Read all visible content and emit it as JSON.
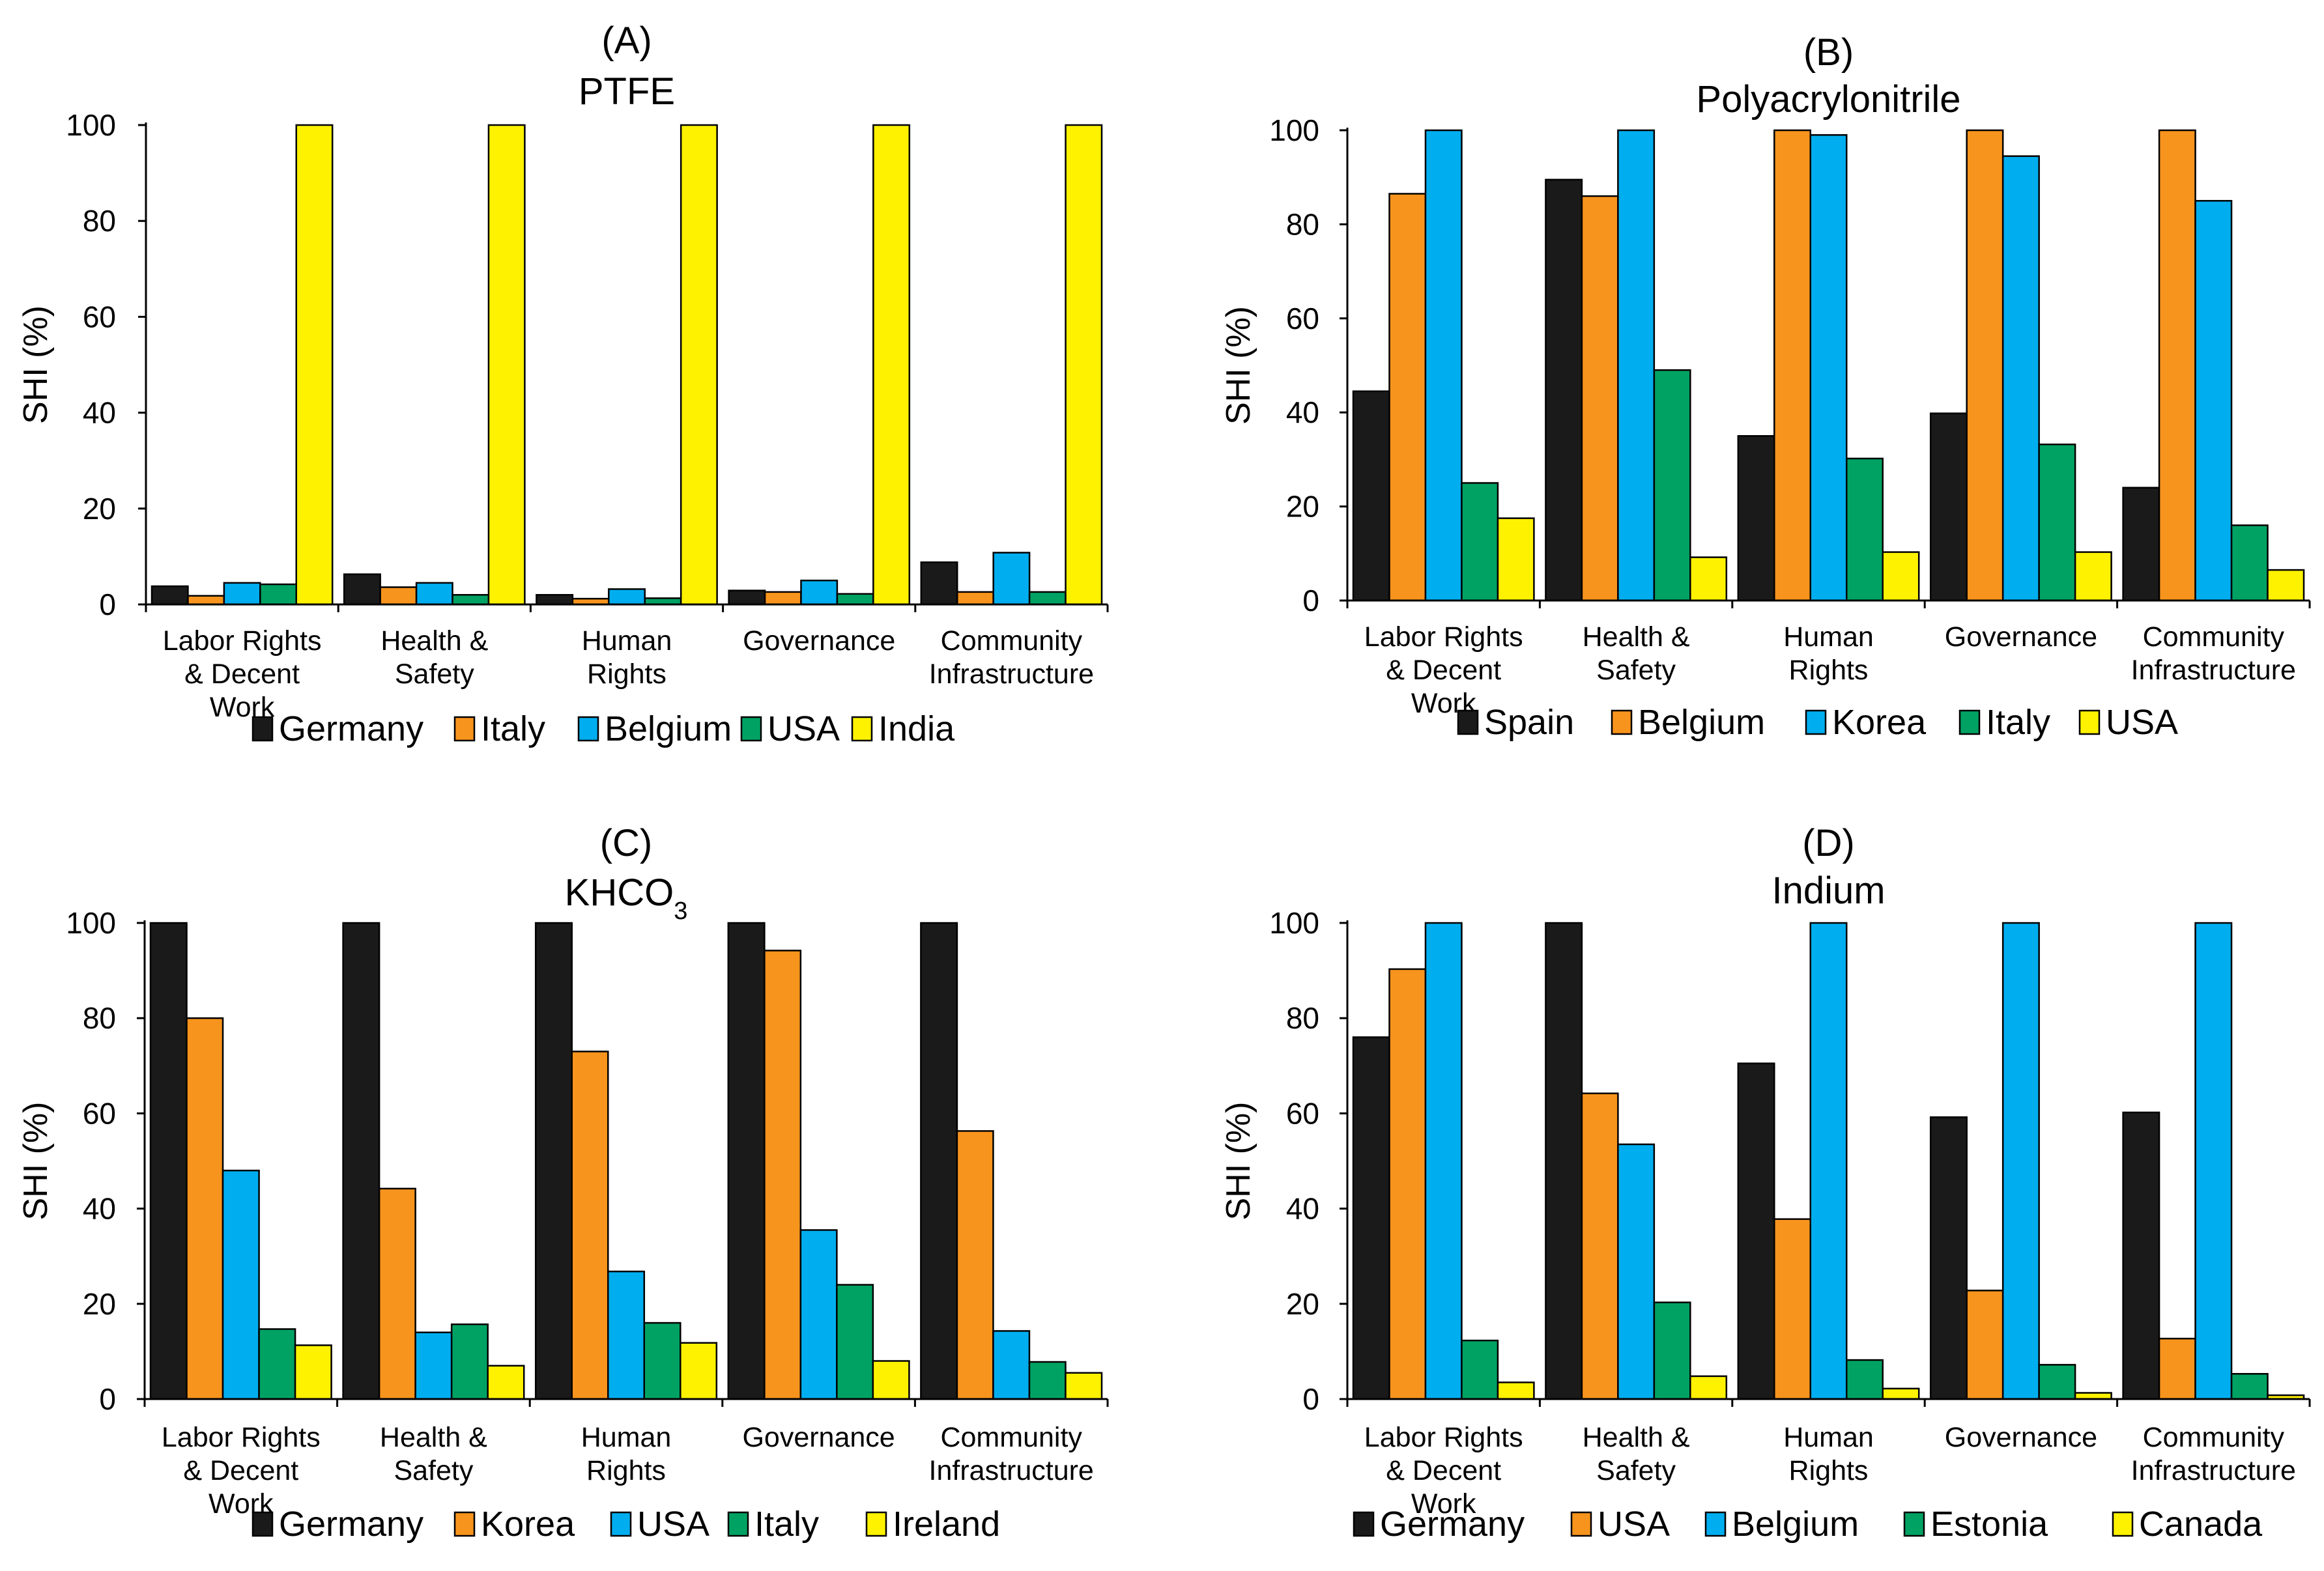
{
  "figure": {
    "ylabel": "SHI (%)"
  },
  "chart_data": [
    {
      "type": "bar",
      "panel": "(A)",
      "title": "PTFE",
      "title_sub": "",
      "title_suffix": "",
      "ylabel": "SHI (%)",
      "ylim": [
        0,
        100
      ],
      "yticks": [
        0,
        20,
        40,
        60,
        80,
        100
      ],
      "categories": [
        [
          "Labor Rights",
          "& Decent",
          "Work"
        ],
        [
          "Health &",
          "Safety"
        ],
        [
          "Human",
          "Rights"
        ],
        [
          "Governance"
        ],
        [
          "Community",
          "Infrastructure"
        ]
      ],
      "series": [
        {
          "name": "Germany",
          "color": "#1a1a1a",
          "values": [
            3.8,
            6.3,
            2.0,
            2.9,
            8.8
          ]
        },
        {
          "name": "Italy",
          "color": "#f7941d",
          "values": [
            1.8,
            3.6,
            1.2,
            2.6,
            2.6
          ]
        },
        {
          "name": "Belgium",
          "color": "#00aeef",
          "values": [
            4.5,
            4.5,
            3.2,
            5.0,
            10.8
          ]
        },
        {
          "name": "USA",
          "color": "#00a264",
          "values": [
            4.2,
            2.0,
            1.3,
            2.2,
            2.6
          ]
        },
        {
          "name": "India",
          "color": "#fff200",
          "values": [
            100,
            100,
            100,
            100,
            100
          ]
        }
      ]
    },
    {
      "type": "bar",
      "panel": "(B)",
      "title": "Polyacrylonitrile",
      "title_sub": "",
      "title_suffix": "",
      "ylabel": "SHI (%)",
      "ylim": [
        0,
        100
      ],
      "yticks": [
        0,
        20,
        40,
        60,
        80,
        100
      ],
      "categories": [
        [
          "Labor Rights",
          "& Decent",
          "Work"
        ],
        [
          "Health &",
          "Safety"
        ],
        [
          "Human",
          "Rights"
        ],
        [
          "Governance"
        ],
        [
          "Community",
          "Infrastructure"
        ]
      ],
      "series": [
        {
          "name": "Spain",
          "color": "#1a1a1a",
          "values": [
            44.5,
            89.5,
            35.0,
            39.8,
            24.0
          ]
        },
        {
          "name": "Belgium",
          "color": "#f7941d",
          "values": [
            86.5,
            86.0,
            100,
            100,
            100
          ]
        },
        {
          "name": "Korea",
          "color": "#00aeef",
          "values": [
            100,
            100,
            99.0,
            94.5,
            85.0
          ]
        },
        {
          "name": "Italy",
          "color": "#00a264",
          "values": [
            25.0,
            49.0,
            30.2,
            33.2,
            16.0
          ]
        },
        {
          "name": "USA",
          "color": "#fff200",
          "values": [
            17.5,
            9.2,
            10.3,
            10.3,
            6.5
          ]
        }
      ]
    },
    {
      "type": "bar",
      "panel": "(C)",
      "title": "KHCO",
      "title_sub": "3",
      "title_suffix": "",
      "ylabel": "SHI (%)",
      "ylim": [
        0,
        100
      ],
      "yticks": [
        0,
        20,
        40,
        60,
        80,
        100
      ],
      "categories": [
        [
          "Labor Rights",
          "& Decent",
          "Work"
        ],
        [
          "Health &",
          "Safety"
        ],
        [
          "Human",
          "Rights"
        ],
        [
          "Governance"
        ],
        [
          "Community",
          "Infrastructure"
        ]
      ],
      "series": [
        {
          "name": "Germany",
          "color": "#1a1a1a",
          "values": [
            100,
            100,
            100,
            100,
            100
          ]
        },
        {
          "name": "Korea",
          "color": "#f7941d",
          "values": [
            80.0,
            44.2,
            73.0,
            94.2,
            56.3
          ]
        },
        {
          "name": "USA",
          "color": "#00aeef",
          "values": [
            48.0,
            14.0,
            26.8,
            35.5,
            14.3
          ]
        },
        {
          "name": "Italy",
          "color": "#00a264",
          "values": [
            14.7,
            15.7,
            16.0,
            24.0,
            7.8
          ]
        },
        {
          "name": "Ireland",
          "color": "#fff200",
          "values": [
            11.3,
            7.0,
            11.8,
            8.0,
            5.5
          ]
        }
      ]
    },
    {
      "type": "bar",
      "panel": "(D)",
      "title": "Indium",
      "title_sub": "",
      "title_suffix": "",
      "ylabel": "SHI (%)",
      "ylim": [
        0,
        100
      ],
      "yticks": [
        0,
        20,
        40,
        60,
        80,
        100
      ],
      "categories": [
        [
          "Labor Rights",
          "& Decent",
          "Work"
        ],
        [
          "Health &",
          "Safety"
        ],
        [
          "Human",
          "Rights"
        ],
        [
          "Governance"
        ],
        [
          "Community",
          "Infrastructure"
        ]
      ],
      "series": [
        {
          "name": "Germany",
          "color": "#1a1a1a",
          "values": [
            76.0,
            100,
            70.5,
            59.2,
            60.2
          ]
        },
        {
          "name": "USA",
          "color": "#f7941d",
          "values": [
            90.3,
            64.2,
            37.8,
            22.8,
            12.7
          ]
        },
        {
          "name": "Belgium",
          "color": "#00aeef",
          "values": [
            100,
            53.5,
            100,
            100,
            100
          ]
        },
        {
          "name": "Estonia",
          "color": "#00a264",
          "values": [
            12.3,
            20.3,
            8.2,
            7.2,
            5.3
          ]
        },
        {
          "name": "Canada",
          "color": "#fff200",
          "values": [
            3.5,
            4.8,
            2.2,
            1.3,
            0.8
          ]
        }
      ]
    }
  ]
}
